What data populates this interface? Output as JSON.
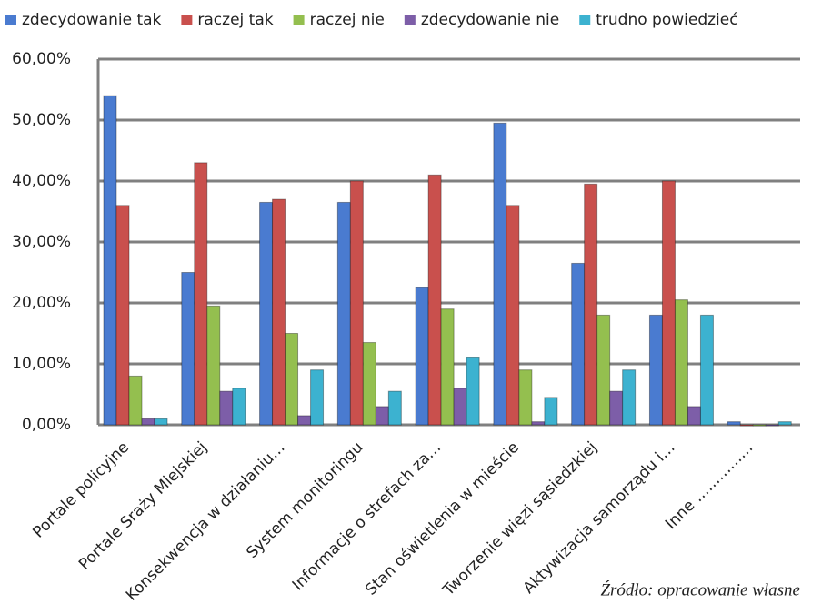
{
  "chart_data": {
    "type": "bar",
    "categories": [
      "Portale policyjne",
      "Portale Sraży Miejskiej",
      "Konsekwencja w działaniu…",
      "System monitoringu",
      "Informacje o strefach za…",
      "Stan oświetlenia w mieście",
      "Tworzenie więzi sąsiedzkiej",
      "Aktywizacja samorządu i…",
      "Inne ……………"
    ],
    "series": [
      {
        "name": "zdecydowanie tak",
        "color": "#4a7bd0",
        "values": [
          54,
          25,
          36.5,
          36.5,
          22.5,
          49.5,
          26.5,
          18,
          0.5
        ]
      },
      {
        "name": "raczej tak",
        "color": "#c9504d",
        "values": [
          36,
          43,
          37,
          40,
          41,
          36,
          39.5,
          40,
          0
        ]
      },
      {
        "name": "raczej nie",
        "color": "#94bf4f",
        "values": [
          8,
          19.5,
          15,
          13.5,
          19,
          9,
          18,
          20.5,
          0
        ]
      },
      {
        "name": "zdecydowanie nie",
        "color": "#7d5ea8",
        "values": [
          1,
          5.5,
          1.5,
          3,
          6,
          0.5,
          5.5,
          3,
          0
        ]
      },
      {
        "name": "trudno powiedzieć",
        "color": "#3cb2d0",
        "values": [
          1,
          6,
          9,
          5.5,
          11,
          4.5,
          9,
          18,
          0.5
        ]
      }
    ],
    "ylim": [
      0,
      60
    ],
    "yticks": [
      {
        "value": 0,
        "label": "0,00%"
      },
      {
        "value": 10,
        "label": "10,00%"
      },
      {
        "value": 20,
        "label": "20,00%"
      },
      {
        "value": 30,
        "label": "30,00%"
      },
      {
        "value": 40,
        "label": "40,00%"
      },
      {
        "value": 50,
        "label": "50,00%"
      },
      {
        "value": 60,
        "label": "60,00%"
      }
    ],
    "grid": true,
    "source": "Źródło: opracowanie własne"
  }
}
